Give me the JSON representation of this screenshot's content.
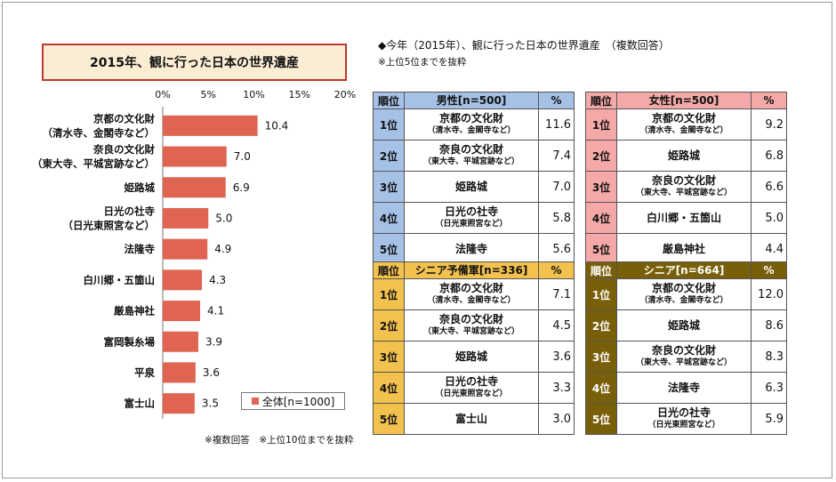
{
  "chart_data": {
    "type": "bar",
    "orientation": "horizontal",
    "title": "2015年、観に行った日本の世界遺産",
    "x_ticks": [
      "0%",
      "5%",
      "10%",
      "15%",
      "20%"
    ],
    "xlim": [
      0,
      20
    ],
    "categories": [
      [
        "京都の文化財",
        "（清水寺、金閣寺など）"
      ],
      [
        "奈良の文化財",
        "（東大寺、平城宮跡など）"
      ],
      [
        "姫路城"
      ],
      [
        "日光の社寺",
        "（日光東照宮など）"
      ],
      [
        "法隆寺"
      ],
      [
        "白川郷・五箇山"
      ],
      [
        "厳島神社"
      ],
      [
        "富岡製糸場"
      ],
      [
        "平泉"
      ],
      [
        "富士山"
      ]
    ],
    "series": [
      {
        "name": "全体[n=1000]",
        "values": [
          10.4,
          7.0,
          6.9,
          5.0,
          4.9,
          4.3,
          4.1,
          3.9,
          3.6,
          3.5
        ]
      }
    ],
    "value_labels": [
      "10.4",
      "7.0",
      "6.9",
      "5.0",
      "4.9",
      "4.3",
      "4.1",
      "3.9",
      "3.6",
      "3.5"
    ],
    "bar_color": "#e06452",
    "legend_position": "bottom-right",
    "grid": false
  },
  "legend_label": "全体[n=1000]",
  "note_bottom": "※複数回答　※上位10位までを抜粋",
  "ranking": {
    "heading": "◆今年（2015年）、観に行った日本の世界遺産　（複数回答）",
    "subnote": "※上位5位までを抜粋",
    "col_rank": "順位",
    "col_pct": "%",
    "tables": [
      {
        "title": "男性[n=500]",
        "header_color": "#a6c1e6",
        "rank_color": "#a6c1e6",
        "rows": [
          {
            "rank": "1位",
            "name": "京都の文化財",
            "sub": "（清水寺、金閣寺など）",
            "pct": "11.6"
          },
          {
            "rank": "2位",
            "name": "奈良の文化財",
            "sub": "（東大寺、平城宮跡など）",
            "pct": "7.4"
          },
          {
            "rank": "3位",
            "name": "姫路城",
            "sub": "",
            "pct": "7.0"
          },
          {
            "rank": "4位",
            "name": "日光の社寺",
            "sub": "（日光東照宮など）",
            "pct": "5.8"
          },
          {
            "rank": "5位",
            "name": "法隆寺",
            "sub": "",
            "pct": "5.6"
          }
        ]
      },
      {
        "title": "女性[n=500]",
        "header_color": "#f4a9a8",
        "rank_color": "#f4a9a8",
        "rows": [
          {
            "rank": "1位",
            "name": "京都の文化財",
            "sub": "（清水寺、金閣寺など）",
            "pct": "9.2"
          },
          {
            "rank": "2位",
            "name": "姫路城",
            "sub": "",
            "pct": "6.8"
          },
          {
            "rank": "3位",
            "name": "奈良の文化財",
            "sub": "（東大寺、平城宮跡など）",
            "pct": "6.6"
          },
          {
            "rank": "4位",
            "name": "白川郷・五箇山",
            "sub": "",
            "pct": "5.0"
          },
          {
            "rank": "5位",
            "name": "厳島神社",
            "sub": "",
            "pct": "4.4"
          }
        ]
      },
      {
        "title": "シニア予備軍[n=336]",
        "header_color": "#f2c14e",
        "rank_color": "#f2c14e",
        "rows": [
          {
            "rank": "1位",
            "name": "京都の文化財",
            "sub": "（清水寺、金閣寺など）",
            "pct": "7.1"
          },
          {
            "rank": "2位",
            "name": "奈良の文化財",
            "sub": "（東大寺、平城宮跡など）",
            "pct": "4.5"
          },
          {
            "rank": "3位",
            "name": "姫路城",
            "sub": "",
            "pct": "3.6"
          },
          {
            "rank": "4位",
            "name": "日光の社寺",
            "sub": "（日光東照宮など）",
            "pct": "3.3"
          },
          {
            "rank": "5位",
            "name": "富士山",
            "sub": "",
            "pct": "3.0"
          }
        ]
      },
      {
        "title": "シニア[n=664]",
        "header_color": "#7a5f0a",
        "rank_color": "#7a5f0a",
        "header_text": "#ffffff",
        "rows": [
          {
            "rank": "1位",
            "name": "京都の文化財",
            "sub": "（清水寺、金閣寺など）",
            "pct": "12.0"
          },
          {
            "rank": "2位",
            "name": "姫路城",
            "sub": "",
            "pct": "8.6"
          },
          {
            "rank": "3位",
            "name": "奈良の文化財",
            "sub": "（東大寺、平城宮跡など）",
            "pct": "8.3"
          },
          {
            "rank": "4位",
            "name": "法隆寺",
            "sub": "",
            "pct": "6.3"
          },
          {
            "rank": "5位",
            "name": "日光の社寺",
            "sub": "（日光東照宮など）",
            "pct": "5.9"
          }
        ]
      }
    ]
  }
}
